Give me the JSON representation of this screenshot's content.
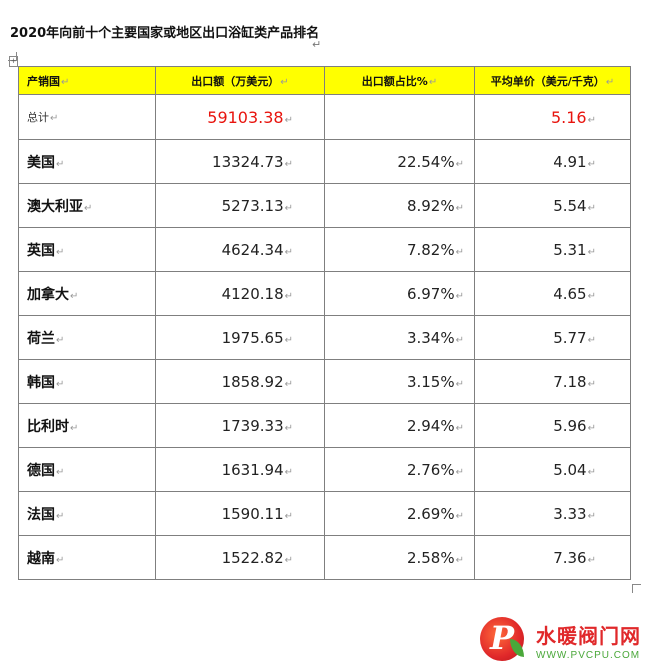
{
  "title": "2020年向前十个主要国家或地区出口浴缸类产品排名",
  "para_mark": "↵",
  "anchor_glyph": "+",
  "table": {
    "headers": [
      "产销国",
      "出口额（万美元）",
      "出口额占比%",
      "平均单价（美元/千克）"
    ],
    "total": {
      "label": "总计",
      "export": "59103.38",
      "share": "",
      "price": "5.16"
    },
    "rows": [
      {
        "country": "美国",
        "export": "13324.73",
        "share": "22.54%",
        "price": "4.91"
      },
      {
        "country": "澳大利亚",
        "export": "5273.13",
        "share": "8.92%",
        "price": "5.54"
      },
      {
        "country": "英国",
        "export": "4624.34",
        "share": "7.82%",
        "price": "5.31"
      },
      {
        "country": "加拿大",
        "export": "4120.18",
        "share": "6.97%",
        "price": "4.65"
      },
      {
        "country": "荷兰",
        "export": "1975.65",
        "share": "3.34%",
        "price": "5.77"
      },
      {
        "country": "韩国",
        "export": "1858.92",
        "share": "3.15%",
        "price": "7.18"
      },
      {
        "country": "比利时",
        "export": "1739.33",
        "share": "2.94%",
        "price": "5.96"
      },
      {
        "country": "德国",
        "export": "1631.94",
        "share": "2.76%",
        "price": "5.04"
      },
      {
        "country": "法国",
        "export": "1590.11",
        "share": "2.69%",
        "price": "3.33"
      },
      {
        "country": "越南",
        "export": "1522.82",
        "share": "2.58%",
        "price": "7.36"
      }
    ]
  },
  "watermark": {
    "logo_letter": "P",
    "name": "水暖阀门网",
    "url": "WWW.PVCPU.COM"
  },
  "colors": {
    "header_bg": "#ffff00",
    "total_red": "#e8140e",
    "brand_red": "#e0282a",
    "brand_green": "#4aa83a"
  }
}
